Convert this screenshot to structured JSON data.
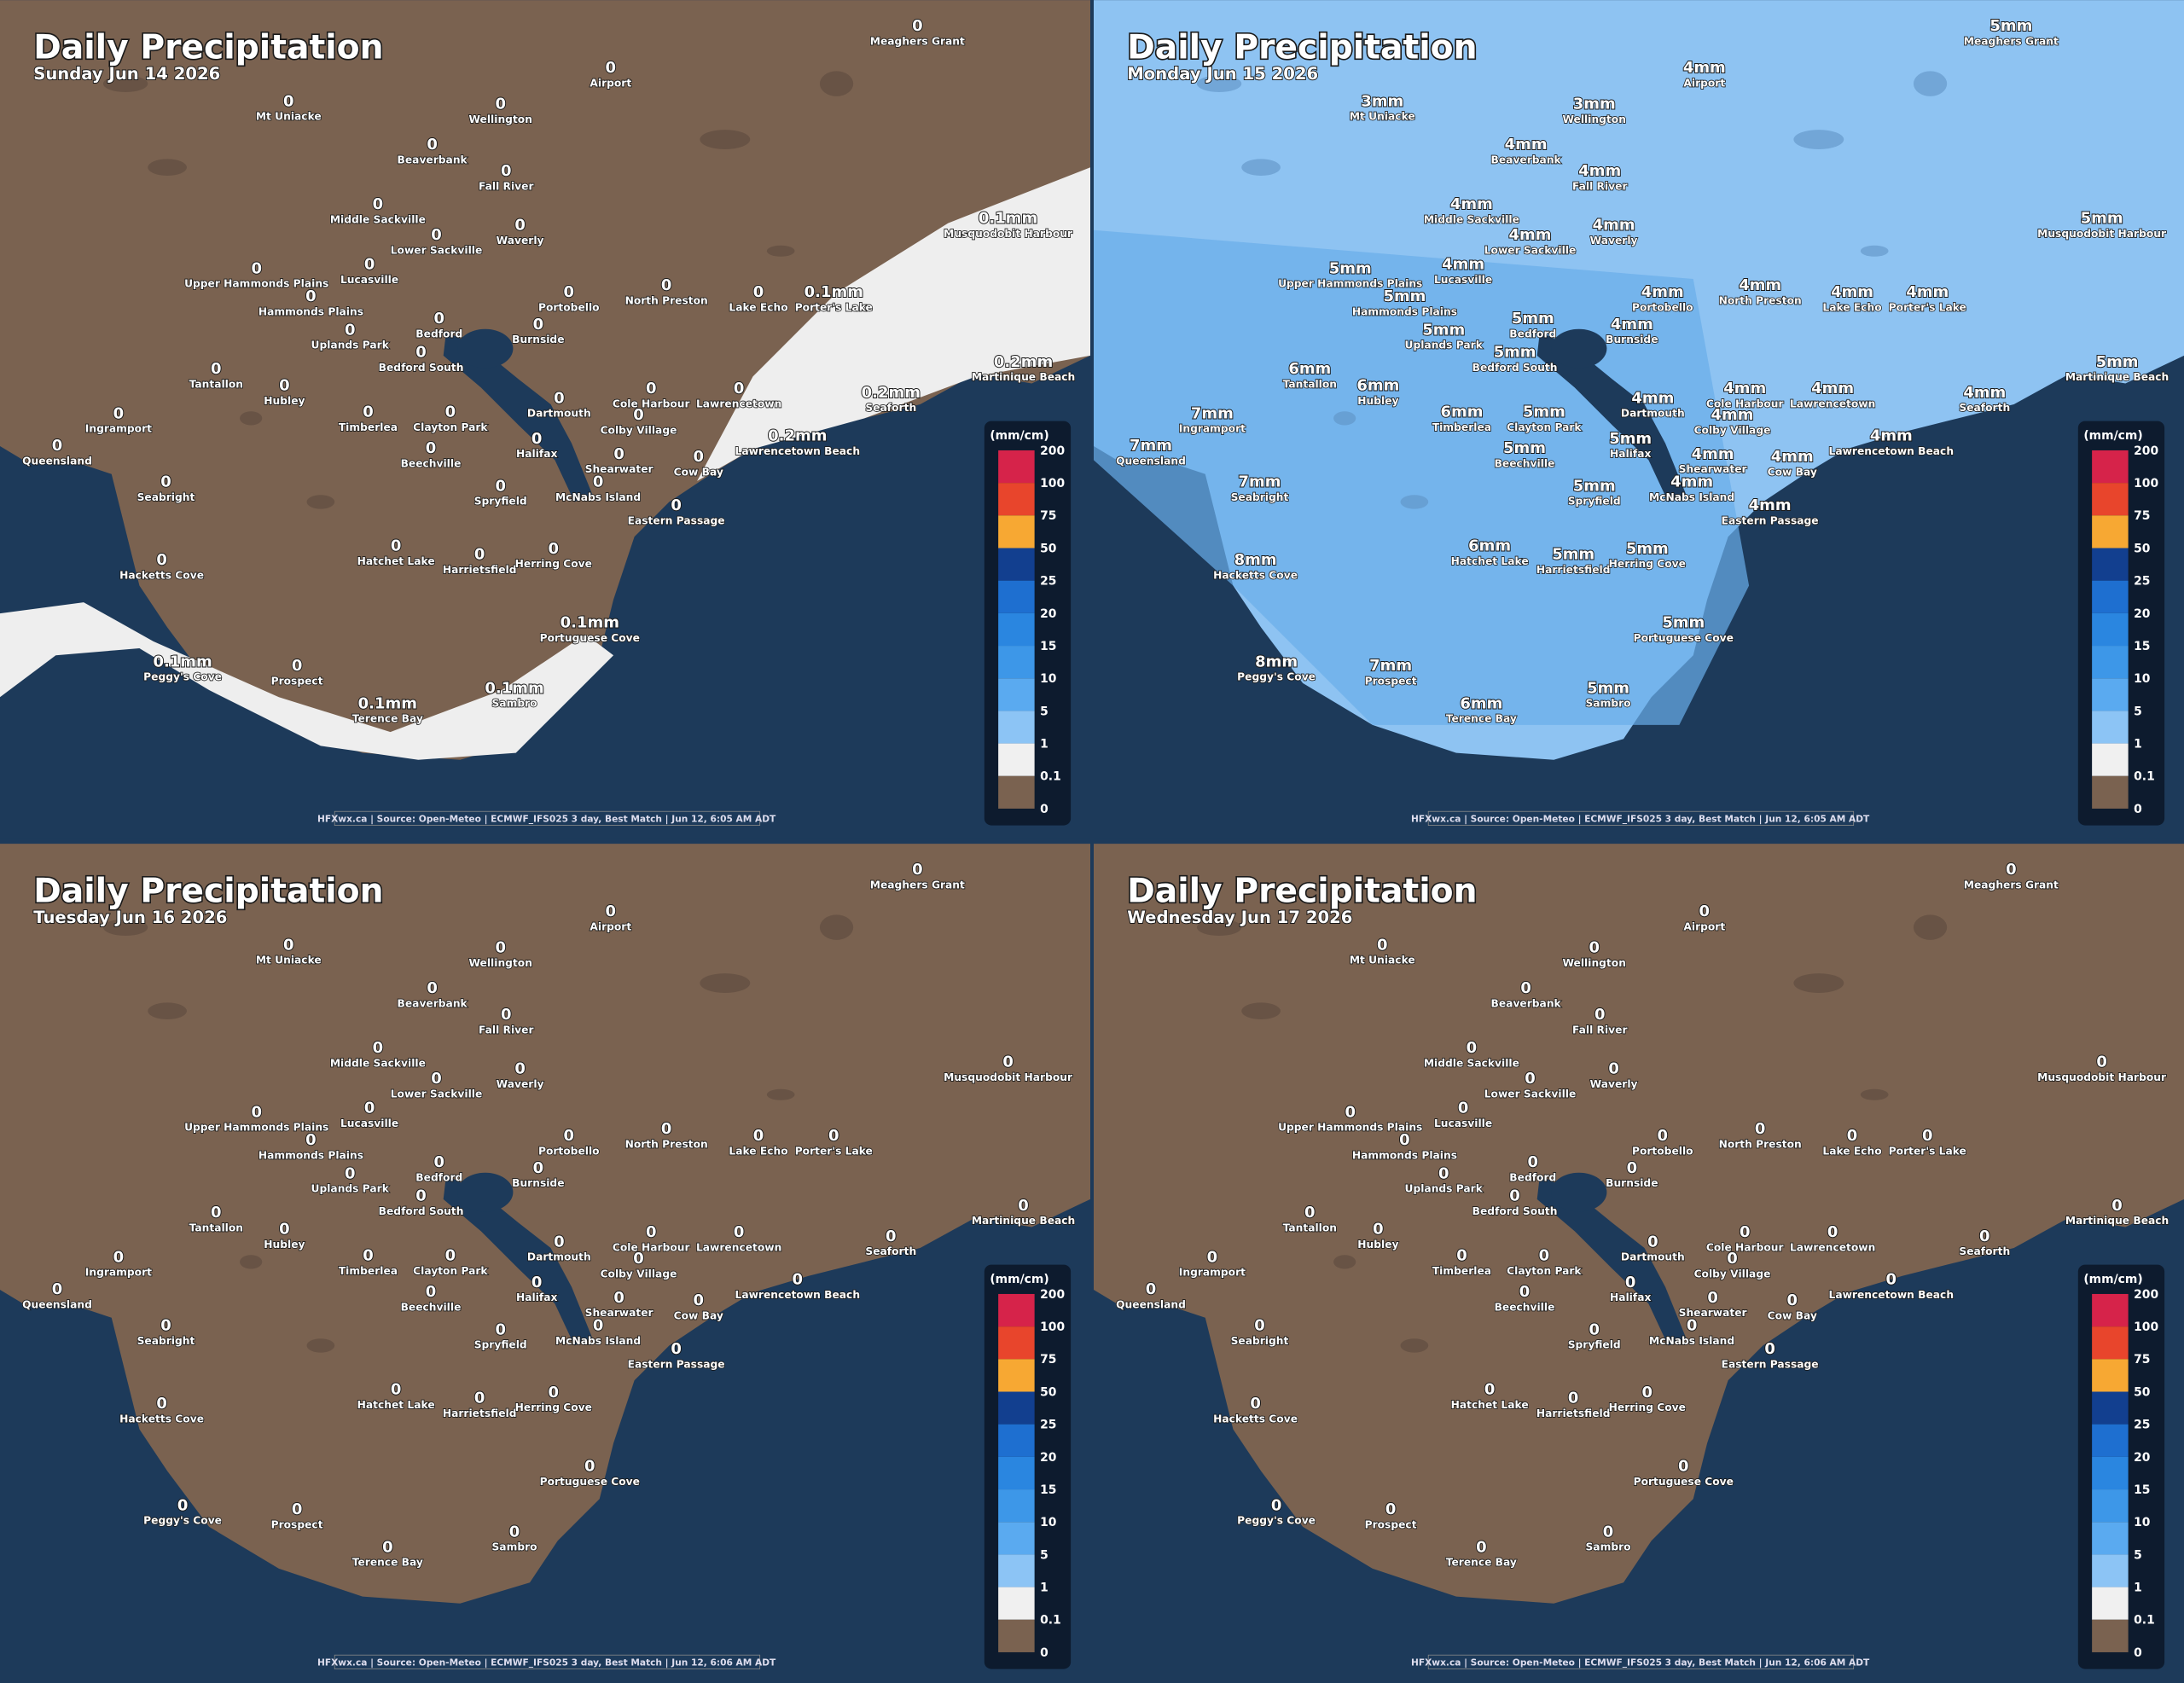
{
  "places": [
    "Meaghers Grant",
    "Airport",
    "Mt Uniacke",
    "Wellington",
    "Beaverbank",
    "Fall River",
    "Middle Sackville",
    "Lower Sackville",
    "Waverly",
    "Musquodobit Harbour",
    "Upper Hammonds Plains",
    "Lucasville",
    "Hammonds Plains",
    "Portobello",
    "North Preston",
    "Lake Echo",
    "Porter's Lake",
    "Uplands Park",
    "Bedford",
    "Burnside",
    "Bedford South",
    "Tantallon",
    "Hubley",
    "Martinique Beach",
    "Cole Harbour",
    "Lawrencetown",
    "Seaforth",
    "Ingramport",
    "Timberlea",
    "Clayton Park",
    "Dartmouth",
    "Colby Village",
    "Queensland",
    "Beechville",
    "Halifax",
    "Shearwater",
    "Cow Bay",
    "Lawrencetown Beach",
    "Seabright",
    "Spryfield",
    "McNabs Island",
    "Eastern Passage",
    "Hatchet Lake",
    "Harrietsfield",
    "Herring Cove",
    "Hacketts Cove",
    "Portuguese Cove",
    "Peggy's Cove",
    "Prospect",
    "Sambro",
    "Terence Bay"
  ],
  "legend": {
    "unit": "(mm/cm)",
    "labels": [
      "200",
      "100",
      "75",
      "50",
      "25",
      "20",
      "15",
      "10",
      "5",
      "1",
      "0.1",
      "0"
    ]
  },
  "panels": [
    {
      "title": "Daily Precipitation",
      "date": "Sunday Jun 14 2026",
      "footer": "HFXwx.ca | Source: Open-Meteo | ECMWF_IFS025 3 day, Best Match | Jun 12, 6:05 AM ADT",
      "values": [
        "0",
        "0",
        "0",
        "0",
        "0",
        "0",
        "0",
        "0",
        "0",
        "0.1mm",
        "0",
        "0",
        "0",
        "0",
        "0",
        "0",
        "0.1mm",
        "0",
        "0",
        "0",
        "0",
        "0",
        "0",
        "0.2mm",
        "0",
        "0",
        "0.2mm",
        "0",
        "0",
        "0",
        "0",
        "0",
        "0",
        "0",
        "0",
        "0",
        "0",
        "0.2mm",
        "0",
        "0",
        "0",
        "0",
        "0",
        "0",
        "0",
        "0",
        "0.1mm",
        "0.1mm",
        "0",
        "0.1mm",
        "0.1mm"
      ]
    },
    {
      "title": "Daily Precipitation",
      "date": "Monday Jun 15 2026",
      "footer": "HFXwx.ca | Source: Open-Meteo | ECMWF_IFS025 3 day, Best Match | Jun 12, 6:05 AM ADT",
      "values": [
        "5mm",
        "4mm",
        "3mm",
        "3mm",
        "4mm",
        "4mm",
        "4mm",
        "4mm",
        "4mm",
        "5mm",
        "5mm",
        "4mm",
        "5mm",
        "4mm",
        "4mm",
        "4mm",
        "4mm",
        "5mm",
        "5mm",
        "4mm",
        "5mm",
        "6mm",
        "6mm",
        "5mm",
        "4mm",
        "4mm",
        "4mm",
        "7mm",
        "6mm",
        "5mm",
        "4mm",
        "4mm",
        "7mm",
        "5mm",
        "5mm",
        "4mm",
        "4mm",
        "4mm",
        "7mm",
        "5mm",
        "4mm",
        "4mm",
        "6mm",
        "5mm",
        "5mm",
        "8mm",
        "5mm",
        "8mm",
        "7mm",
        "5mm",
        "6mm"
      ]
    },
    {
      "title": "Daily Precipitation",
      "date": "Tuesday Jun 16 2026",
      "footer": "HFXwx.ca | Source: Open-Meteo | ECMWF_IFS025 3 day, Best Match | Jun 12, 6:06 AM ADT",
      "values": [
        "0",
        "0",
        "0",
        "0",
        "0",
        "0",
        "0",
        "0",
        "0",
        "0",
        "0",
        "0",
        "0",
        "0",
        "0",
        "0",
        "0",
        "0",
        "0",
        "0",
        "0",
        "0",
        "0",
        "0",
        "0",
        "0",
        "0",
        "0",
        "0",
        "0",
        "0",
        "0",
        "0",
        "0",
        "0",
        "0",
        "0",
        "0",
        "0",
        "0",
        "0",
        "0",
        "0",
        "0",
        "0",
        "0",
        "0",
        "0",
        "0",
        "0",
        "0"
      ]
    },
    {
      "title": "Daily Precipitation",
      "date": "Wednesday Jun 17 2026",
      "footer": "HFXwx.ca | Source: Open-Meteo | ECMWF_IFS025 3 day, Best Match | Jun 12, 6:06 AM ADT",
      "values": [
        "0",
        "0",
        "0",
        "0",
        "0",
        "0",
        "0",
        "0",
        "0",
        "0",
        "0",
        "0",
        "0",
        "0",
        "0",
        "0",
        "0",
        "0",
        "0",
        "0",
        "0",
        "0",
        "0",
        "0",
        "0",
        "0",
        "0",
        "0",
        "0",
        "0",
        "0",
        "0",
        "0",
        "0",
        "0",
        "0",
        "0",
        "0",
        "0",
        "0",
        "0",
        "0",
        "0",
        "0",
        "0",
        "0",
        "0",
        "0",
        "0",
        "0",
        "0"
      ]
    }
  ]
}
